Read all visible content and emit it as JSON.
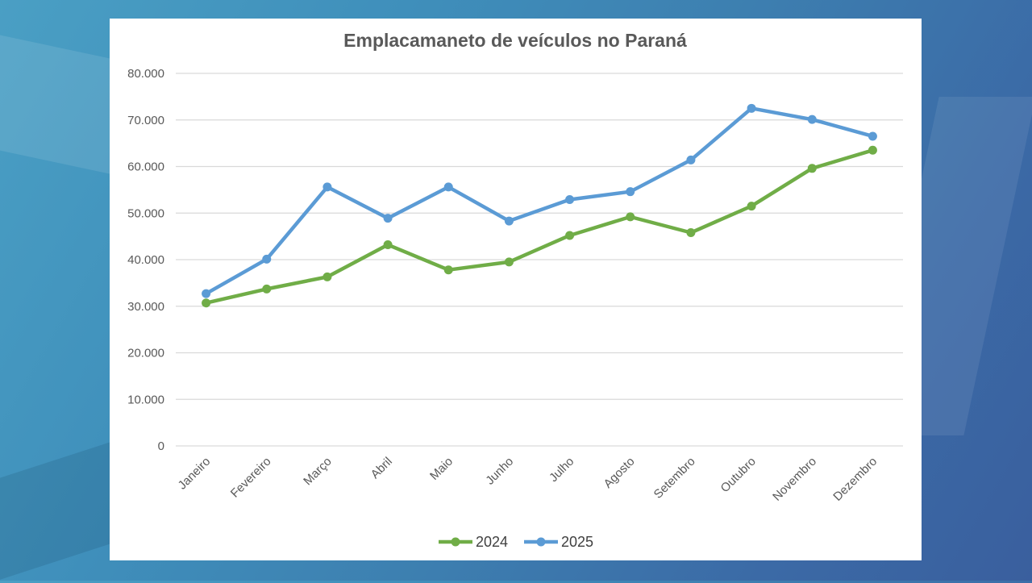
{
  "chart_data": {
    "type": "line",
    "title": "Emplacamaneto de veículos no Paraná",
    "xlabel": "",
    "ylabel": "",
    "ylim": [
      0,
      80000
    ],
    "yticks": [
      0,
      10000,
      20000,
      30000,
      40000,
      50000,
      60000,
      70000,
      80000
    ],
    "ytick_labels": [
      "0",
      "10.000",
      "20.000",
      "30.000",
      "40.000",
      "50.000",
      "60.000",
      "70.000",
      "80.000"
    ],
    "categories": [
      "Janeiro",
      "Fevereiro",
      "Março",
      "Abril",
      "Maio",
      "Junho",
      "Julho",
      "Agosto",
      "Setembro",
      "Outubro",
      "Novembro",
      "Dezembro"
    ],
    "series": [
      {
        "name": "2024",
        "color": "#70ad47",
        "values": [
          30700,
          33700,
          36300,
          43200,
          37800,
          39500,
          45200,
          49200,
          45800,
          51500,
          59600,
          63500
        ]
      },
      {
        "name": "2025",
        "color": "#5b9bd5",
        "values": [
          32700,
          40100,
          55600,
          48900,
          55600,
          48300,
          52900,
          54600,
          61400,
          72500,
          70100,
          66500
        ]
      }
    ],
    "grid": true,
    "legend": "bottom"
  }
}
